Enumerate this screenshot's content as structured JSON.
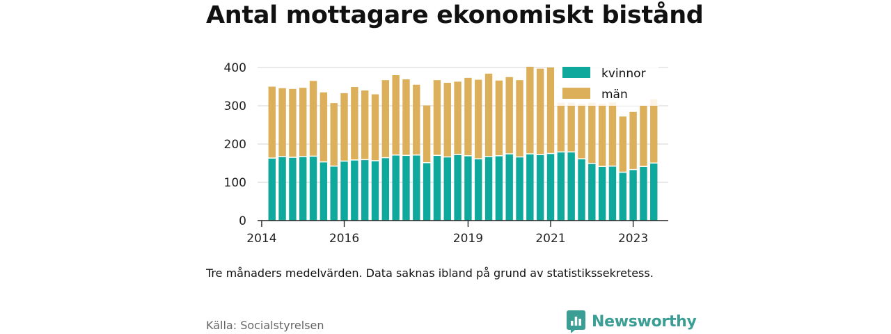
{
  "title": "Antal mottagare ekonomiskt bistånd",
  "note": "Tre månaders medelvärden. Data saknas ibland på grund av statistikssekretess.",
  "source": "Källa: Socialstyrelsen",
  "brand": {
    "name": "Newsworthy",
    "icon": "bar-chart-speech-bubble-icon",
    "color": "#3a9e94"
  },
  "chart_data": {
    "type": "bar",
    "stacked": true,
    "title": "Antal mottagare ekonomiskt bistånd",
    "ylim": [
      0,
      420
    ],
    "yticks": [
      0,
      100,
      200,
      300,
      400
    ],
    "xticks": [
      "2014",
      "2016",
      "2019",
      "2021",
      "2023"
    ],
    "xtick_positions": [
      2014.0,
      2016.0,
      2019.0,
      2021.0,
      2023.0
    ],
    "grid": true,
    "legend_position": "top-right",
    "x": [
      2014.25,
      2014.5,
      2014.75,
      2015.0,
      2015.25,
      2015.5,
      2015.75,
      2016.0,
      2016.25,
      2016.5,
      2016.75,
      2017.0,
      2017.25,
      2017.5,
      2017.75,
      2018.0,
      2018.25,
      2018.5,
      2018.75,
      2019.0,
      2019.25,
      2019.5,
      2019.75,
      2020.0,
      2020.25,
      2020.5,
      2020.75,
      2021.0,
      2021.25,
      2021.5,
      2021.75,
      2022.0,
      2022.25,
      2022.5,
      2022.75,
      2023.0,
      2023.25,
      2023.5
    ],
    "series": [
      {
        "name": "kvinnor",
        "color": "#0ea89c",
        "values": [
          162,
          166,
          164,
          166,
          167,
          152,
          141,
          154,
          157,
          158,
          155,
          163,
          170,
          169,
          170,
          150,
          169,
          165,
          171,
          168,
          160,
          166,
          168,
          173,
          165,
          173,
          171,
          174,
          178,
          178,
          160,
          148,
          140,
          141,
          125,
          132,
          140,
          149
        ]
      },
      {
        "name": "män",
        "color": "#dcb05a",
        "values": [
          188,
          180,
          180,
          181,
          198,
          183,
          166,
          179,
          192,
          182,
          175,
          204,
          210,
          200,
          185,
          151,
          198,
          195,
          192,
          205,
          208,
          218,
          198,
          202,
          202,
          229,
          226,
          226,
          130,
          130,
          145,
          160,
          165,
          168,
          147,
          152,
          160,
          168
        ]
      }
    ]
  }
}
